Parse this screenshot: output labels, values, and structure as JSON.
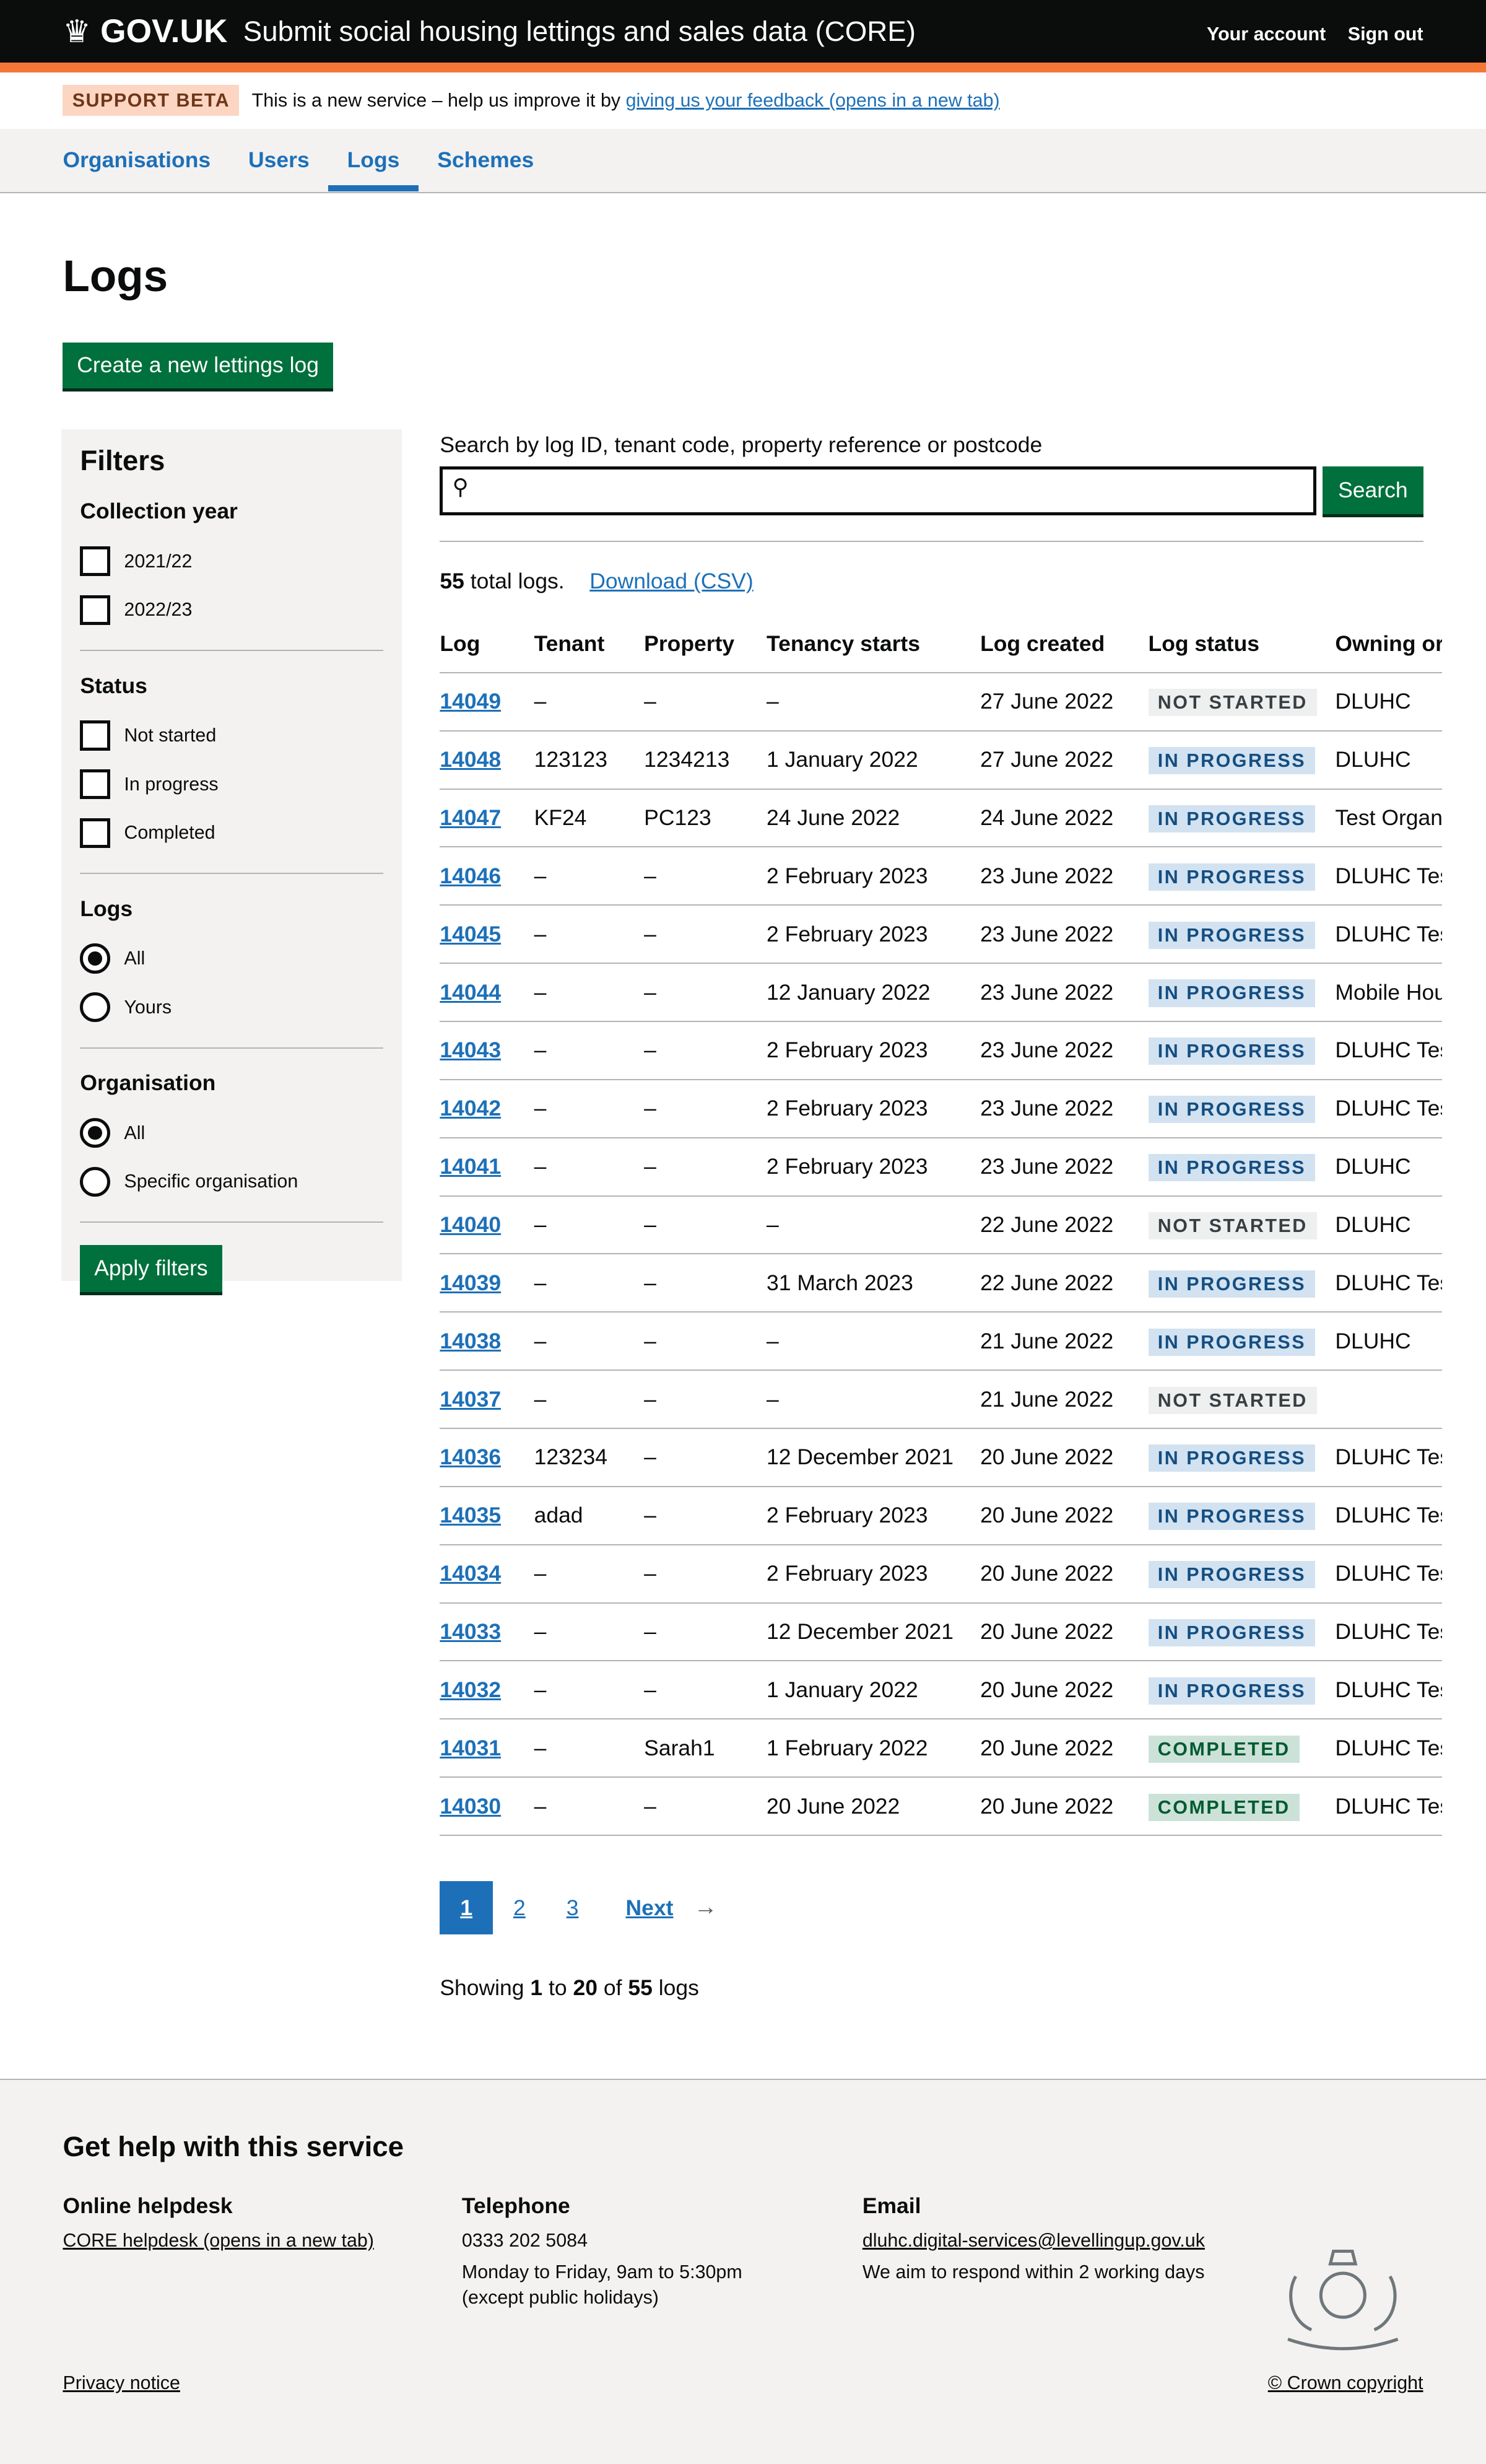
{
  "header": {
    "logo": "GOV.UK",
    "service": "Submit social housing lettings and sales data (CORE)",
    "links": [
      "Your account",
      "Sign out"
    ]
  },
  "beta": {
    "tag": "SUPPORT BETA",
    "text": "This is a new service – help us improve it by ",
    "link": "giving us your feedback (opens in a new tab)"
  },
  "nav": [
    "Organisations",
    "Users",
    "Logs",
    "Schemes"
  ],
  "page": {
    "title": "Logs",
    "create_button": "Create a new lettings log"
  },
  "filters": {
    "title": "Filters",
    "collection_year": {
      "label": "Collection year",
      "options": [
        "2021/22",
        "2022/23"
      ]
    },
    "status": {
      "label": "Status",
      "options": [
        "Not started",
        "In progress",
        "Completed"
      ]
    },
    "logs": {
      "label": "Logs",
      "options": [
        "All",
        "Yours"
      ],
      "selected": "All"
    },
    "organisation": {
      "label": "Organisation",
      "options": [
        "All",
        "Specific organisation"
      ],
      "selected": "All"
    },
    "apply": "Apply filters"
  },
  "search": {
    "label": "Search by log ID, tenant code, property reference or postcode",
    "value": "",
    "button": "Search"
  },
  "summary": {
    "count": "55",
    "text": " total logs.",
    "download": "Download (CSV)"
  },
  "table": {
    "headers": [
      "Log",
      "Tenant",
      "Property",
      "Tenancy starts",
      "Log created",
      "Log status",
      "Owning or"
    ],
    "rows": [
      [
        "14049",
        "–",
        "–",
        "–",
        "27 June 2022",
        "NOT STARTED",
        "DLUHC"
      ],
      [
        "14048",
        "123123",
        "1234213",
        "1 January 2022",
        "27 June 2022",
        "IN PROGRESS",
        "DLUHC"
      ],
      [
        "14047",
        "KF24",
        "PC123",
        "24 June 2022",
        "24 June 2022",
        "IN PROGRESS",
        "Test Organ"
      ],
      [
        "14046",
        "–",
        "–",
        "2 February 2023",
        "23 June 2022",
        "IN PROGRESS",
        "DLUHC Tes"
      ],
      [
        "14045",
        "–",
        "–",
        "2 February 2023",
        "23 June 2022",
        "IN PROGRESS",
        "DLUHC Tes"
      ],
      [
        "14044",
        "–",
        "–",
        "12 January 2022",
        "23 June 2022",
        "IN PROGRESS",
        "Mobile Hou"
      ],
      [
        "14043",
        "–",
        "–",
        "2 February 2023",
        "23 June 2022",
        "IN PROGRESS",
        "DLUHC Tes"
      ],
      [
        "14042",
        "–",
        "–",
        "2 February 2023",
        "23 June 2022",
        "IN PROGRESS",
        "DLUHC Tes"
      ],
      [
        "14041",
        "–",
        "–",
        "2 February 2023",
        "23 June 2022",
        "IN PROGRESS",
        "DLUHC"
      ],
      [
        "14040",
        "–",
        "–",
        "–",
        "22 June 2022",
        "NOT STARTED",
        "DLUHC"
      ],
      [
        "14039",
        "–",
        "–",
        "31 March 2023",
        "22 June 2022",
        "IN PROGRESS",
        "DLUHC Tes"
      ],
      [
        "14038",
        "–",
        "–",
        "–",
        "21 June 2022",
        "IN PROGRESS",
        "DLUHC"
      ],
      [
        "14037",
        "–",
        "–",
        "–",
        "21 June 2022",
        "NOT STARTED",
        ""
      ],
      [
        "14036",
        "123234",
        "–",
        "12 December 2021",
        "20 June 2022",
        "IN PROGRESS",
        "DLUHC Tes"
      ],
      [
        "14035",
        "adad",
        "–",
        "2 February 2023",
        "20 June 2022",
        "IN PROGRESS",
        "DLUHC Tes"
      ],
      [
        "14034",
        "–",
        "–",
        "2 February 2023",
        "20 June 2022",
        "IN PROGRESS",
        "DLUHC Tes"
      ],
      [
        "14033",
        "–",
        "–",
        "12 December 2021",
        "20 June 2022",
        "IN PROGRESS",
        "DLUHC Tes"
      ],
      [
        "14032",
        "–",
        "–",
        "1 January 2022",
        "20 June 2022",
        "IN PROGRESS",
        "DLUHC Tes"
      ],
      [
        "14031",
        "–",
        "Sarah1",
        "1 February 2022",
        "20 June 2022",
        "COMPLETED",
        "DLUHC Tes"
      ],
      [
        "14030",
        "–",
        "–",
        "20 June 2022",
        "20 June 2022",
        "COMPLETED",
        "DLUHC Tes"
      ]
    ]
  },
  "pagination": {
    "pages": [
      "1",
      "2",
      "3"
    ],
    "current": "1",
    "next": "Next"
  },
  "showing": {
    "a": "Showing ",
    "from": "1",
    "b": " to ",
    "to": "20",
    "c": " of ",
    "total": "55",
    "d": " logs"
  },
  "footer": {
    "title": "Get help with this service",
    "helpdesk": {
      "title": "Online helpdesk",
      "link": "CORE helpdesk (opens in a new tab)"
    },
    "telephone": {
      "title": "Telephone",
      "number": "0333 202 5084",
      "hours": "Monday to Friday, 9am to 5:30pm",
      "note": "(except public holidays)"
    },
    "email": {
      "title": "Email",
      "address": "dluhc.digital-services@levellingup.gov.uk",
      "note": "We aim to respond within 2 working days"
    },
    "privacy": "Privacy notice",
    "copyright": "© Crown copyright"
  },
  "colors": {
    "header": "#0b0c0c",
    "accent": "#f47738",
    "link": "#1d70b8",
    "button": "#00703c"
  }
}
